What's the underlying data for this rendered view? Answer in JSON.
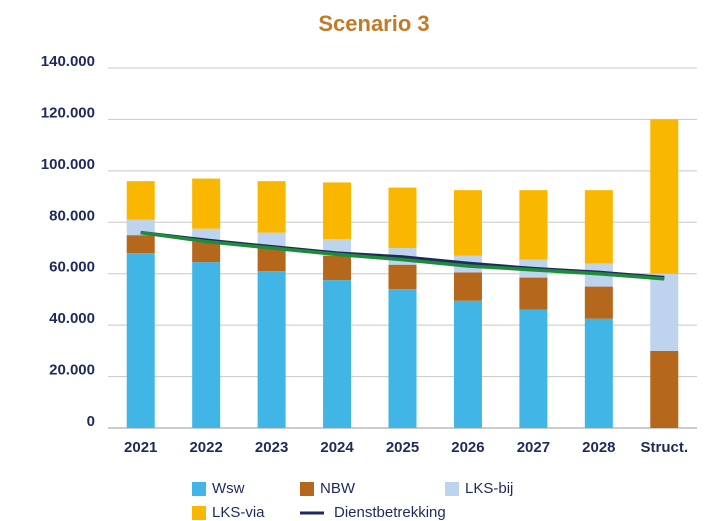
{
  "chart_data": {
    "type": "bar",
    "stacked": true,
    "title": "Scenario 3",
    "categories": [
      "2021",
      "2022",
      "2023",
      "2024",
      "2025",
      "2026",
      "2027",
      "2028",
      "Struct."
    ],
    "series": [
      {
        "name": "Wsw",
        "color": "#41b6e6",
        "values": [
          68000,
          64500,
          61000,
          57500,
          54000,
          49500,
          46000,
          42500,
          0
        ]
      },
      {
        "name": "NBW",
        "color": "#b5671c",
        "values": [
          7000,
          8000,
          9000,
          9500,
          9500,
          11000,
          12500,
          12500,
          30000
        ]
      },
      {
        "name": "LKS-bij",
        "color": "#bdd3ee",
        "values": [
          6000,
          5000,
          6000,
          6500,
          6500,
          6500,
          7000,
          9000,
          30000
        ]
      },
      {
        "name": "LKS-via",
        "color": "#f9b700",
        "values": [
          15000,
          19500,
          20000,
          22000,
          23500,
          25500,
          27000,
          28500,
          60000
        ]
      },
      {
        "name": "Dienstbetrekking",
        "type": "line",
        "color": "#1f2a5c",
        "values": [
          76000,
          73000,
          70500,
          68000,
          66500,
          64000,
          62000,
          60500,
          58500
        ]
      },
      {
        "type": "line",
        "color": "#1e8c3a",
        "values": [
          76000,
          72500,
          70000,
          67500,
          65500,
          63000,
          61500,
          60000,
          58000
        ]
      }
    ],
    "ylim": [
      0,
      140000
    ],
    "yticks": [
      0,
      {
        "value": 20000,
        "label": "20.000"
      },
      {
        "value": 40000,
        "label": "40.000"
      },
      {
        "value": 60000,
        "label": "60.000"
      },
      {
        "value": 80000,
        "label": "80.000"
      },
      {
        "value": 100000,
        "label": "100.000"
      },
      {
        "value": 120000,
        "label": "120.000"
      },
      {
        "value": 140000,
        "label": "140.000"
      }
    ],
    "grid": true,
    "legend": "bottom"
  }
}
